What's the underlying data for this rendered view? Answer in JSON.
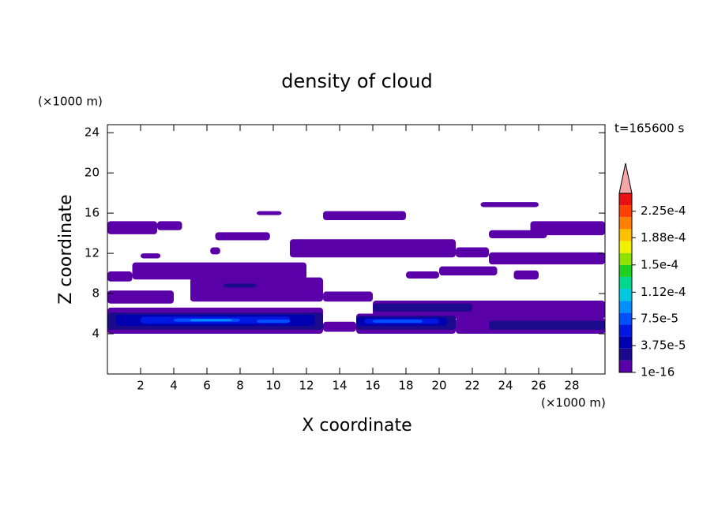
{
  "chart_data": {
    "type": "contour",
    "title": "density of cloud",
    "x_label": "X coordinate",
    "y_label": "Z coordinate",
    "x_unit": "(×1000 m)",
    "y_unit": "(×1000 m)",
    "annotation": "t=165600 s",
    "xlim": [
      0,
      30
    ],
    "ylim": [
      0,
      24.8
    ],
    "xticks": [
      2,
      4,
      6,
      8,
      10,
      12,
      14,
      16,
      18,
      20,
      22,
      24,
      26,
      28
    ],
    "yticks": [
      4,
      8,
      12,
      16,
      20,
      24
    ],
    "colorbar": {
      "clim": [
        1e-16,
        0.00025
      ],
      "ticks": [
        {
          "value": 1e-16,
          "label": "1e-16"
        },
        {
          "value": 3.75e-05,
          "label": "3.75e-5"
        },
        {
          "value": 7.5e-05,
          "label": "7.5e-5"
        },
        {
          "value": 0.000112,
          "label": "1.12e-4"
        },
        {
          "value": 0.00015,
          "label": "1.5e-4"
        },
        {
          "value": 0.000188,
          "label": "1.88e-4"
        },
        {
          "value": 0.000225,
          "label": "2.25e-4"
        }
      ],
      "colors": [
        "#5a00a8",
        "#1c0a8c",
        "#0000b0",
        "#0018e0",
        "#0050ff",
        "#0090ff",
        "#00c8e0",
        "#00d890",
        "#20d020",
        "#90e000",
        "#f0f000",
        "#ffc000",
        "#ff8000",
        "#ff4000",
        "#e81010"
      ],
      "extend_color": "#f4a8a8"
    },
    "regions": [
      {
        "x": [
          0,
          13
        ],
        "z": [
          4,
          6.6
        ],
        "level": 0
      },
      {
        "x": [
          13,
          15
        ],
        "z": [
          4.2,
          5.2
        ],
        "level": 0
      },
      {
        "x": [
          15,
          21
        ],
        "z": [
          4,
          6
        ],
        "level": 0
      },
      {
        "x": [
          16,
          30
        ],
        "z": [
          5.5,
          7.3
        ],
        "level": 0
      },
      {
        "x": [
          21,
          30
        ],
        "z": [
          4,
          5.6
        ],
        "level": 0
      },
      {
        "x": [
          0,
          4
        ],
        "z": [
          7,
          8.3
        ],
        "level": 0
      },
      {
        "x": [
          5,
          13
        ],
        "z": [
          7.2,
          9.6
        ],
        "level": 0
      },
      {
        "x": [
          13,
          16
        ],
        "z": [
          7.2,
          8.2
        ],
        "level": 0
      },
      {
        "x": [
          0,
          1.5
        ],
        "z": [
          9.2,
          10.2
        ],
        "level": 0
      },
      {
        "x": [
          1.5,
          12
        ],
        "z": [
          9.4,
          11.1
        ],
        "level": 0
      },
      {
        "x": [
          11,
          21
        ],
        "z": [
          11.6,
          13.4
        ],
        "level": 0
      },
      {
        "x": [
          21,
          23
        ],
        "z": [
          11.6,
          12.6
        ],
        "level": 0
      },
      {
        "x": [
          23,
          30
        ],
        "z": [
          10.9,
          12.1
        ],
        "level": 0
      },
      {
        "x": [
          0,
          3
        ],
        "z": [
          13.9,
          15.2
        ],
        "level": 0
      },
      {
        "x": [
          3,
          4.5
        ],
        "z": [
          14.3,
          15.2
        ],
        "level": 0
      },
      {
        "x": [
          6.5,
          9.8
        ],
        "z": [
          13.3,
          14.1
        ],
        "level": 0
      },
      {
        "x": [
          13,
          18
        ],
        "z": [
          15.3,
          16.2
        ],
        "level": 0
      },
      {
        "x": [
          9,
          10.5
        ],
        "z": [
          15.8,
          16.2
        ],
        "level": 0
      },
      {
        "x": [
          22.5,
          26
        ],
        "z": [
          16.6,
          17.1
        ],
        "level": 0
      },
      {
        "x": [
          23,
          26.5
        ],
        "z": [
          13.5,
          14.3
        ],
        "level": 0
      },
      {
        "x": [
          25.5,
          30
        ],
        "z": [
          13.8,
          15.2
        ],
        "level": 0
      },
      {
        "x": [
          2,
          3.2
        ],
        "z": [
          11.5,
          12
        ],
        "level": 0
      },
      {
        "x": [
          18,
          20
        ],
        "z": [
          9.5,
          10.2
        ],
        "level": 0
      },
      {
        "x": [
          20,
          23.5
        ],
        "z": [
          9.8,
          10.7
        ],
        "level": 0
      },
      {
        "x": [
          24.5,
          26
        ],
        "z": [
          9.4,
          10.3
        ],
        "level": 0
      },
      {
        "x": [
          6.2,
          6.8
        ],
        "z": [
          11.9,
          12.6
        ],
        "level": 0
      },
      {
        "x": [
          0,
          13
        ],
        "z": [
          4.4,
          6.1
        ],
        "level": 1
      },
      {
        "x": [
          15,
          21
        ],
        "z": [
          4.4,
          5.8
        ],
        "level": 1
      },
      {
        "x": [
          16,
          22
        ],
        "z": [
          6.2,
          7
        ],
        "level": 1
      },
      {
        "x": [
          23,
          30
        ],
        "z": [
          4.4,
          5.3
        ],
        "level": 1
      },
      {
        "x": [
          7,
          9
        ],
        "z": [
          8.6,
          9
        ],
        "level": 1
      },
      {
        "x": [
          0.5,
          12.5
        ],
        "z": [
          4.8,
          5.9
        ],
        "level": 2
      },
      {
        "x": [
          15,
          20.5
        ],
        "z": [
          4.8,
          5.6
        ],
        "level": 2
      },
      {
        "x": [
          2,
          11
        ],
        "z": [
          5,
          5.7
        ],
        "level": 3
      },
      {
        "x": [
          15.5,
          20
        ],
        "z": [
          5,
          5.5
        ],
        "level": 3
      },
      {
        "x": [
          4,
          8
        ],
        "z": [
          5.2,
          5.5
        ],
        "level": 4
      },
      {
        "x": [
          9,
          11
        ],
        "z": [
          5.1,
          5.4
        ],
        "level": 4
      },
      {
        "x": [
          16,
          19
        ],
        "z": [
          5.1,
          5.4
        ],
        "level": 4
      },
      {
        "x": [
          5,
          7.5
        ],
        "z": [
          5.25,
          5.45
        ],
        "level": 5
      }
    ]
  }
}
